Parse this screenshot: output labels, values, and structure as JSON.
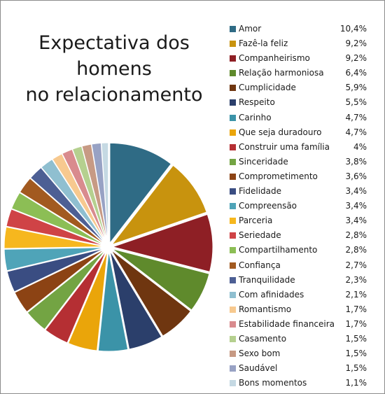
{
  "chart_data": {
    "type": "pie",
    "title": [
      "Expectativa dos homens",
      "no relacionamento"
    ],
    "legend_position": "right",
    "categories": [
      "Amor",
      "Fazê-la feliz",
      "Companheirismo",
      "Relação harmoniosa",
      "Cumplicidade",
      "Respeito",
      "Carinho",
      "Que seja duradouro",
      "Construir uma família",
      "Sinceridade",
      "Comprometimento",
      "Fidelidade",
      "Compreensão",
      "Parceria",
      "Seriedade",
      "Compartilhamento",
      "Confiança",
      "Tranquilidade",
      "Com afinidades",
      "Romantismo",
      "Estabilidade financeira",
      "Casamento",
      "Sexo bom",
      "Saudável",
      "Bons momentos"
    ],
    "values": [
      10.4,
      9.2,
      9.2,
      6.4,
      5.9,
      5.5,
      4.7,
      4.7,
      4,
      3.8,
      3.6,
      3.4,
      3.4,
      3.4,
      2.8,
      2.8,
      2.7,
      2.3,
      2.1,
      1.7,
      1.7,
      1.5,
      1.5,
      1.5,
      1.1
    ],
    "value_labels": [
      "10,4%",
      "9,2%",
      "9,2%",
      "6,4%",
      "5,9%",
      "5,5%",
      "4,7%",
      "4,7%",
      "4%",
      "3,8%",
      "3,6%",
      "3,4%",
      "3,4%",
      "3,4%",
      "2,8%",
      "2,8%",
      "2,7%",
      "2,3%",
      "2,1%",
      "1,7%",
      "1,7%",
      "1,5%",
      "1,5%",
      "1,5%",
      "1,1%"
    ],
    "colors": [
      "#2f6b85",
      "#c8930e",
      "#8e1f25",
      "#5f8a2c",
      "#6f3610",
      "#2b3f6b",
      "#3b93a8",
      "#eaa50a",
      "#b52f33",
      "#73a443",
      "#8c4314",
      "#3a4d82",
      "#4fa4b8",
      "#f6b71e",
      "#cf4346",
      "#8cbe55",
      "#a25a20",
      "#4d5f94",
      "#8fbfd0",
      "#f7c98f",
      "#d98b8e",
      "#b5d08f",
      "#c79a84",
      "#98a2c4",
      "#c5d9e3"
    ]
  }
}
